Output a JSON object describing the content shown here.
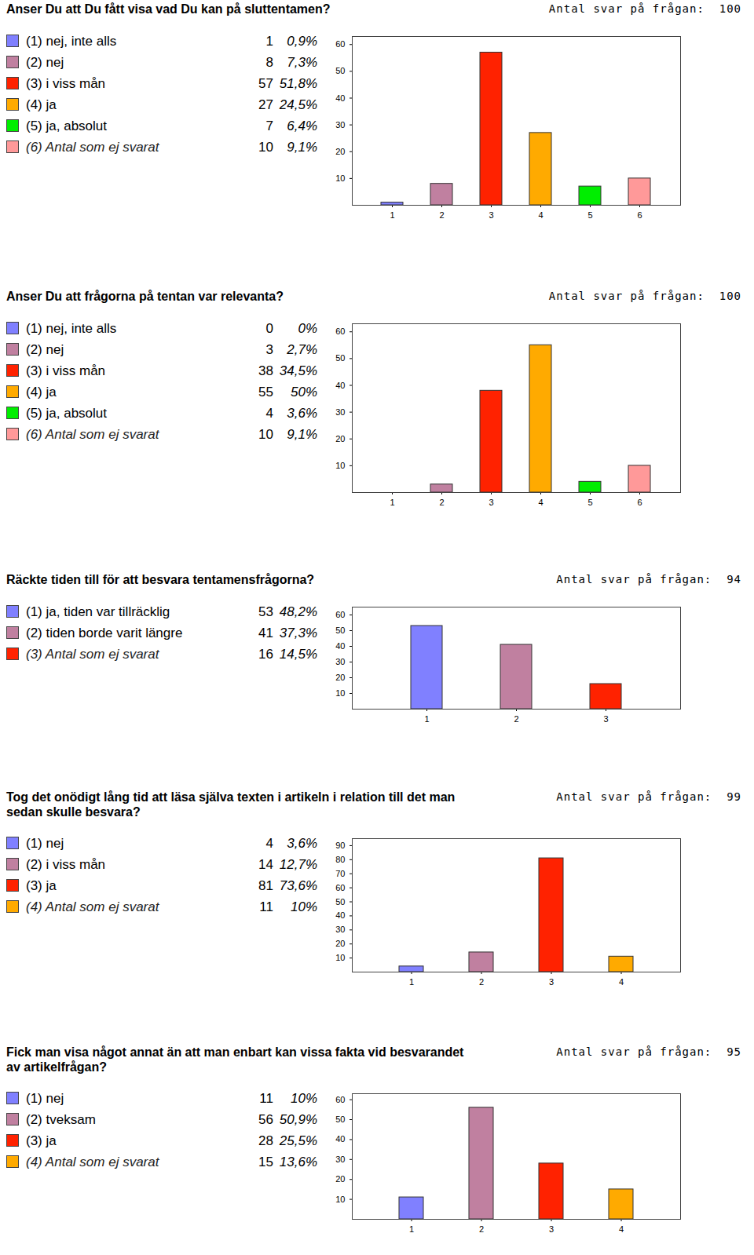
{
  "chart_data": [
    {
      "type": "bar",
      "title": "Anser Du att Du fått visa vad Du kan på sluttentamen?",
      "subtitle": "Antal svar på frågan:  100",
      "categories": [
        "1",
        "2",
        "3",
        "4",
        "5",
        "6"
      ],
      "values": [
        1,
        8,
        57,
        27,
        7,
        10
      ],
      "labels": [
        "(1) nej, inte alls",
        "(2) nej",
        "(3) i viss mån",
        "(4) ja",
        "(5) ja, absolut",
        "(6) Antal som ej svarat"
      ],
      "shares": [
        "0,9%",
        "7,3%",
        "51,8%",
        "24,5%",
        "6,4%",
        "9,1%"
      ],
      "colors": [
        "#8080ff",
        "#c080a0",
        "#ff2200",
        "#ffaa00",
        "#00ee00",
        "#ff9999"
      ],
      "ylim": [
        0,
        63
      ],
      "yticks": [
        10,
        20,
        30,
        40,
        50,
        60
      ],
      "grid": false
    },
    {
      "type": "bar",
      "title": "Anser Du att frågorna på tentan var relevanta?",
      "subtitle": "Antal svar på frågan:  100",
      "categories": [
        "1",
        "2",
        "3",
        "4",
        "5",
        "6"
      ],
      "values": [
        0,
        3,
        38,
        55,
        4,
        10
      ],
      "labels": [
        "(1) nej, inte alls",
        "(2) nej",
        "(3) i viss mån",
        "(4) ja",
        "(5) ja, absolut",
        "(6) Antal som ej svarat"
      ],
      "shares": [
        "0%",
        "2,7%",
        "34,5%",
        "50%",
        "3,6%",
        "9,1%"
      ],
      "colors": [
        "#8080ff",
        "#c080a0",
        "#ff2200",
        "#ffaa00",
        "#00ee00",
        "#ff9999"
      ],
      "ylim": [
        0,
        63
      ],
      "yticks": [
        10,
        20,
        30,
        40,
        50,
        60
      ],
      "grid": false
    },
    {
      "type": "bar",
      "title": "Räckte tiden till för att besvara tentamensfrågorna?",
      "subtitle": "Antal svar på frågan:  94",
      "categories": [
        "1",
        "2",
        "3"
      ],
      "values": [
        53,
        41,
        16
      ],
      "labels": [
        "(1) ja, tiden var tillräcklig",
        "(2) tiden borde varit längre",
        "(3) Antal som ej svarat"
      ],
      "shares": [
        "48,2%",
        "37,3%",
        "14,5%"
      ],
      "colors": [
        "#8080ff",
        "#c080a0",
        "#ff2200"
      ],
      "ylim": [
        0,
        65
      ],
      "yticks": [
        10,
        20,
        30,
        40,
        50,
        60
      ],
      "grid": false
    },
    {
      "type": "bar",
      "title": "Tog det onödigt lång tid att läsa själva texten i artikeln i relation till det man sedan skulle besvara?",
      "subtitle": "Antal svar på frågan:  99",
      "categories": [
        "1",
        "2",
        "3",
        "4"
      ],
      "values": [
        4,
        14,
        81,
        11
      ],
      "labels": [
        "(1) nej",
        "(2) i viss mån",
        "(3) ja",
        "(4) Antal som ej svarat"
      ],
      "shares": [
        "3,6%",
        "12,7%",
        "73,6%",
        "10%"
      ],
      "colors": [
        "#8080ff",
        "#c080a0",
        "#ff2200",
        "#ffaa00"
      ],
      "ylim": [
        0,
        95
      ],
      "yticks": [
        10,
        20,
        30,
        40,
        50,
        60,
        70,
        80,
        90
      ],
      "grid": false
    },
    {
      "type": "bar",
      "title": "Fick man visa något annat än att man enbart kan vissa fakta vid besvarandet av artikelfrågan?",
      "subtitle": "Antal svar på frågan:  95",
      "categories": [
        "1",
        "2",
        "3",
        "4"
      ],
      "values": [
        11,
        56,
        28,
        15
      ],
      "labels": [
        "(1) nej",
        "(2) tveksam",
        "(3) ja",
        "(4) Antal som ej svarat"
      ],
      "shares": [
        "10%",
        "50,9%",
        "25,5%",
        "13,6%"
      ],
      "colors": [
        "#8080ff",
        "#c080a0",
        "#ff2200",
        "#ffaa00"
      ],
      "ylim": [
        0,
        63
      ],
      "yticks": [
        10,
        20,
        30,
        40,
        50,
        60
      ],
      "grid": false
    }
  ]
}
